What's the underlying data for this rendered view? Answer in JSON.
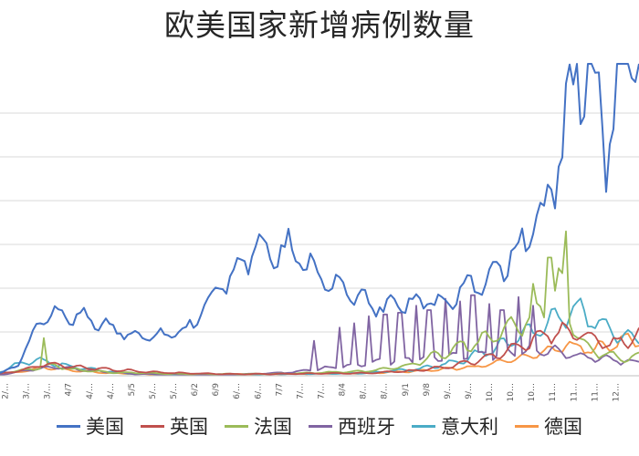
{
  "chart_data": {
    "type": "line",
    "title": "欧美国家新增病例数量",
    "x_tick_labels": [
      "2/…",
      "3/…",
      "3/…",
      "4/7",
      "4/…",
      "4/…",
      "5/5",
      "5/…",
      "5/…",
      "6/2",
      "6/9",
      "6/…",
      "6/…",
      "7/7",
      "7/…",
      "7/…",
      "8/4",
      "8/…",
      "8/…",
      "9/1",
      "9/8",
      "9/…",
      "9/…",
      "10…",
      "10…",
      "10…",
      "11…",
      "11…",
      "11…",
      "12…"
    ],
    "grid": true,
    "legend_position": "bottom",
    "series": [
      {
        "name": "美国",
        "color": "#4472C4",
        "keypoints": [
          [
            0,
            0.3
          ],
          [
            20,
            1.2
          ],
          [
            45,
            6.5
          ],
          [
            60,
            7.3
          ],
          [
            80,
            6.8
          ],
          [
            100,
            6.5
          ],
          [
            120,
            5.5
          ],
          [
            140,
            4.8
          ],
          [
            160,
            4.6
          ],
          [
            180,
            4.7
          ],
          [
            200,
            4.9
          ],
          [
            215,
            6.5
          ],
          [
            230,
            8.5
          ],
          [
            250,
            11
          ],
          [
            265,
            13.5
          ],
          [
            285,
            14.8
          ],
          [
            300,
            13.6
          ],
          [
            320,
            14.5
          ],
          [
            340,
            12.5
          ],
          [
            360,
            11
          ],
          [
            380,
            9.5
          ],
          [
            400,
            8.6
          ],
          [
            420,
            7.8
          ],
          [
            440,
            8.2
          ],
          [
            460,
            8.6
          ],
          [
            480,
            8.4
          ],
          [
            500,
            9.2
          ],
          [
            520,
            10.6
          ],
          [
            540,
            11.5
          ],
          [
            560,
            13.5
          ],
          [
            580,
            16.5
          ],
          [
            595,
            18.5
          ],
          [
            605,
            21
          ],
          [
            615,
            26.5
          ],
          [
            625,
            31
          ],
          [
            640,
            35
          ],
          [
            655,
            33
          ],
          [
            670,
            28
          ],
          [
            680,
            37.5
          ],
          [
            690,
            34
          ],
          [
            700,
            36
          ]
        ],
        "spikes": [
          [
            633,
            40
          ],
          [
            665,
            21
          ],
          [
            686,
            44
          ],
          [
            693,
            34
          ]
        ]
      },
      {
        "name": "英国",
        "color": "#C0504D",
        "keypoints": [
          [
            0,
            0.2
          ],
          [
            30,
            0.8
          ],
          [
            50,
            1.4
          ],
          [
            80,
            1.0
          ],
          [
            110,
            0.8
          ],
          [
            140,
            0.6
          ],
          [
            170,
            0.4
          ],
          [
            200,
            0.3
          ],
          [
            250,
            0.2
          ],
          [
            300,
            0.2
          ],
          [
            400,
            0.3
          ],
          [
            460,
            0.6
          ],
          [
            500,
            1.2
          ],
          [
            540,
            2.2
          ],
          [
            580,
            3.8
          ],
          [
            610,
            5.2
          ],
          [
            630,
            5.0
          ],
          [
            650,
            4.2
          ],
          [
            670,
            3.6
          ],
          [
            700,
            4.5
          ]
        ],
        "spikes": []
      },
      {
        "name": "法国",
        "color": "#9BBB59",
        "keypoints": [
          [
            0,
            0.3
          ],
          [
            40,
            0.8
          ],
          [
            60,
            1.2
          ],
          [
            80,
            0.7
          ],
          [
            120,
            0.4
          ],
          [
            200,
            0.2
          ],
          [
            300,
            0.2
          ],
          [
            400,
            0.5
          ],
          [
            450,
            1.2
          ],
          [
            480,
            2.4
          ],
          [
            510,
            3.5
          ],
          [
            540,
            4.5
          ],
          [
            570,
            6.0
          ],
          [
            590,
            7.5
          ],
          [
            605,
            9.0
          ],
          [
            615,
            10.5
          ],
          [
            625,
            6.5
          ],
          [
            640,
            3.5
          ],
          [
            660,
            2.5
          ],
          [
            680,
            2.0
          ],
          [
            700,
            2.2
          ]
        ],
        "spikes": [
          [
            48,
            4.3
          ],
          [
            619,
            16.5
          ],
          [
            602,
            13.5
          ],
          [
            585,
            10.5
          ]
        ]
      },
      {
        "name": "西班牙",
        "color": "#8064A2",
        "keypoints": [
          [
            0,
            0.1
          ],
          [
            30,
            0.6
          ],
          [
            55,
            1.0
          ],
          [
            80,
            0.8
          ],
          [
            110,
            0.5
          ],
          [
            150,
            0.2
          ],
          [
            250,
            0.1
          ],
          [
            320,
            0.4
          ],
          [
            360,
            0.9
          ],
          [
            400,
            1.4
          ],
          [
            440,
            1.8
          ],
          [
            480,
            2.1
          ],
          [
            520,
            2.3
          ],
          [
            560,
            2.6
          ],
          [
            600,
            2.9
          ],
          [
            640,
            2.2
          ],
          [
            670,
            1.8
          ],
          [
            700,
            1.5
          ]
        ],
        "spikes": [
          [
            345,
            4.0
          ],
          [
            372,
            5.5
          ],
          [
            388,
            6.0
          ],
          [
            405,
            6.8
          ],
          [
            422,
            7.0
          ],
          [
            438,
            7.2
          ],
          [
            455,
            8.0
          ],
          [
            470,
            7.5
          ],
          [
            487,
            8.8
          ],
          [
            503,
            8.5
          ],
          [
            518,
            9.2
          ],
          [
            535,
            8.2
          ],
          [
            550,
            7.5
          ],
          [
            567,
            9.0
          ],
          [
            583,
            8.0
          ]
        ]
      },
      {
        "name": "意大利",
        "color": "#4BACC6",
        "keypoints": [
          [
            0,
            0.5
          ],
          [
            25,
            1.5
          ],
          [
            40,
            1.8
          ],
          [
            60,
            1.4
          ],
          [
            80,
            1.0
          ],
          [
            110,
            0.6
          ],
          [
            140,
            0.3
          ],
          [
            200,
            0.1
          ],
          [
            300,
            0.2
          ],
          [
            400,
            0.3
          ],
          [
            460,
            0.8
          ],
          [
            500,
            1.6
          ],
          [
            540,
            3.0
          ],
          [
            580,
            5.0
          ],
          [
            610,
            6.5
          ],
          [
            630,
            7.5
          ],
          [
            650,
            6.5
          ],
          [
            670,
            5.0
          ],
          [
            700,
            4.2
          ]
        ],
        "spikes": []
      },
      {
        "name": "德国",
        "color": "#F79646",
        "keypoints": [
          [
            0,
            0.1
          ],
          [
            30,
            0.6
          ],
          [
            50,
            1.0
          ],
          [
            80,
            0.6
          ],
          [
            120,
            0.3
          ],
          [
            200,
            0.1
          ],
          [
            300,
            0.2
          ],
          [
            400,
            0.3
          ],
          [
            470,
            0.6
          ],
          [
            520,
            1.0
          ],
          [
            560,
            1.8
          ],
          [
            600,
            2.8
          ],
          [
            620,
            3.4
          ],
          [
            650,
            3.0
          ],
          [
            680,
            3.8
          ],
          [
            700,
            4.5
          ]
        ],
        "spikes": []
      }
    ]
  }
}
